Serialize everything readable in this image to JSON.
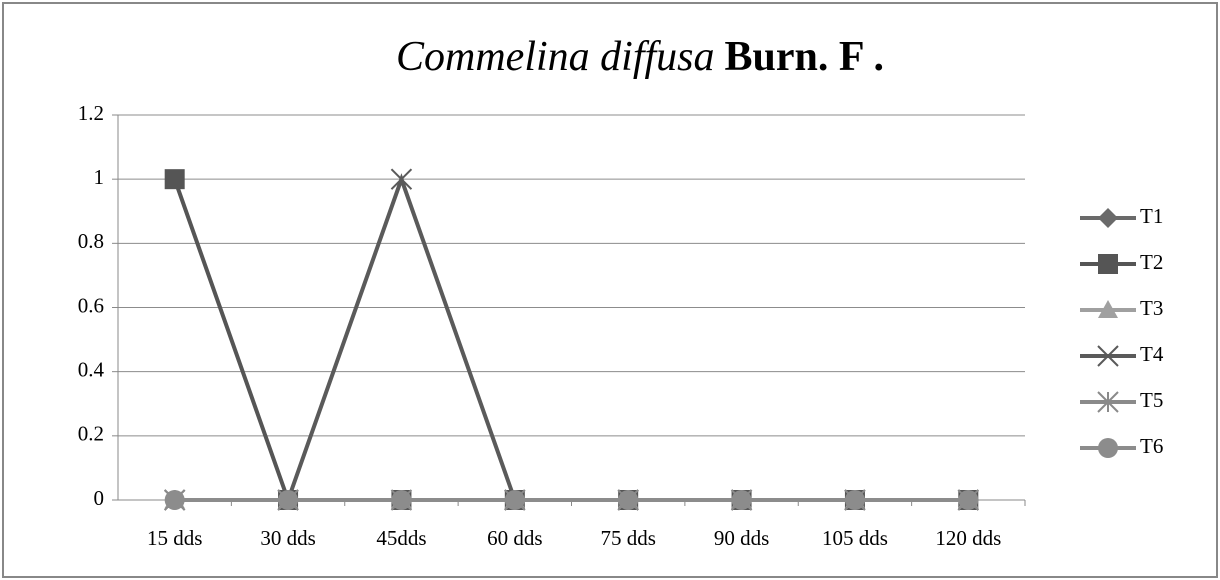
{
  "chart_data": {
    "type": "line",
    "title": [
      "Commelina diffusa",
      "Burn. F ."
    ],
    "categories": [
      "15 dds",
      "30 dds",
      "45dds",
      "60 dds",
      "75 dds",
      "90 dds",
      "105 dds",
      "120 dds"
    ],
    "series": [
      {
        "name": "T1",
        "color": "#6a6a6a",
        "marker": "diamond",
        "values": [
          0,
          0,
          0,
          0,
          0,
          0,
          0,
          0
        ]
      },
      {
        "name": "T2",
        "color": "#555555",
        "marker": "square",
        "values": [
          1,
          0,
          0,
          0,
          0,
          0,
          0,
          0
        ]
      },
      {
        "name": "T3",
        "color": "#a0a0a0",
        "marker": "triangle",
        "values": [
          0,
          0,
          0,
          0,
          0,
          0,
          0,
          0
        ]
      },
      {
        "name": "T4",
        "color": "#5a5a5a",
        "marker": "x",
        "values": [
          0,
          0,
          1,
          0,
          0,
          0,
          0,
          0
        ]
      },
      {
        "name": "T5",
        "color": "#8a8a8a",
        "marker": "star",
        "values": [
          0,
          0,
          0,
          0,
          0,
          0,
          0,
          0
        ]
      },
      {
        "name": "T6",
        "color": "#8c8c8c",
        "marker": "circle",
        "values": [
          0,
          0,
          0,
          0,
          0,
          0,
          0,
          0
        ]
      }
    ],
    "ylim": [
      0,
      1.2
    ],
    "yticks": [
      0,
      0.2,
      0.4,
      0.6,
      0.8,
      1,
      1.2
    ],
    "grid": true,
    "legend": "right"
  }
}
